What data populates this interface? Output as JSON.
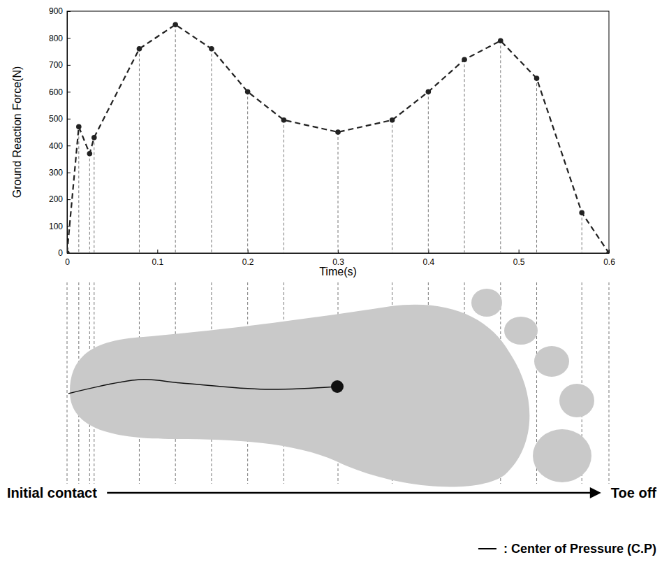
{
  "chart_data": {
    "type": "line",
    "xlabel": "Time(s)",
    "ylabel": "Ground Reaction Force(N)",
    "x": [
      0,
      0.013,
      0.025,
      0.03,
      0.08,
      0.12,
      0.16,
      0.2,
      0.24,
      0.3,
      0.36,
      0.4,
      0.44,
      0.48,
      0.52,
      0.57,
      0.6
    ],
    "values": [
      0,
      470,
      370,
      430,
      760,
      850,
      760,
      600,
      495,
      450,
      495,
      600,
      720,
      790,
      650,
      150,
      0
    ],
    "color": "#222222",
    "marker": "circle",
    "line_style": "dashed",
    "xlim": [
      0,
      0.6
    ],
    "ylim": [
      0,
      900
    ],
    "xticks": [
      0,
      0.1,
      0.2,
      0.3,
      0.4,
      0.5,
      0.6
    ],
    "yticks": [
      0,
      100,
      200,
      300,
      400,
      500,
      600,
      700,
      800,
      900
    ],
    "grid": false,
    "annotations": [
      "Initial contact",
      "Toe off",
      ": Center of Pressure (C.P)"
    ]
  }
}
